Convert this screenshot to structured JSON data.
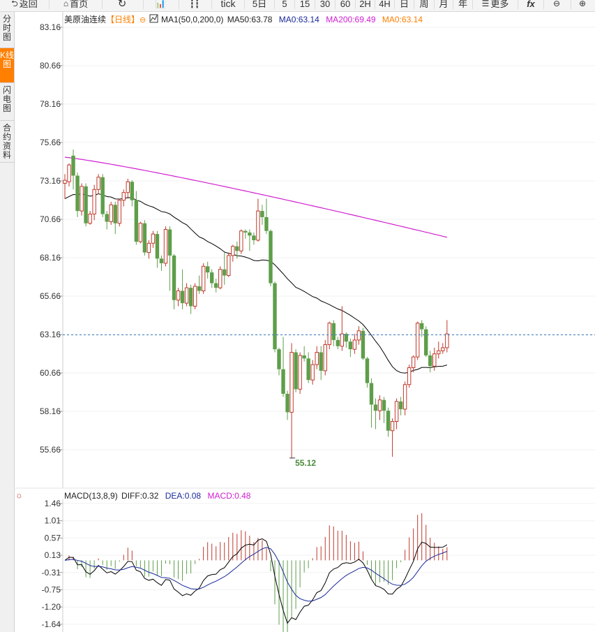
{
  "toolbar": {
    "back": "返回",
    "home": "首页",
    "tick": "tick",
    "periods": [
      "5日",
      "5",
      "15",
      "30",
      "60",
      "2H",
      "4H",
      "日",
      "周",
      "月",
      "年"
    ],
    "more": "更多",
    "fx": "fx"
  },
  "side_tabs": [
    {
      "label": "分时图",
      "active": false
    },
    {
      "label": "K线图",
      "active": true
    },
    {
      "label": "闪电图",
      "active": false
    },
    {
      "label": "合约资料",
      "active": false
    }
  ],
  "price_legend": {
    "name": "美原油连续",
    "period_tag": "【日线】",
    "ma_params": "MA1(50,0,200,0)",
    "ma50": "MA50:63.78",
    "ma0": "MA0:63.14",
    "ma200": "MA200:69.49",
    "ma0b": "MA0:63.14"
  },
  "macd_legend": {
    "name": "MACD(13,8,9)",
    "diff": "DIFF:0.32",
    "dea": "DEA:0.08",
    "macd": "MACD:0.48"
  },
  "colors": {
    "up": "#c0392b",
    "down": "#5e9e4a",
    "ma50": "#000000",
    "ma200": "#d020d0",
    "dea": "#1a2a9a",
    "last_price_line": "#3b7bbf",
    "accent": "#ff7f00"
  },
  "chart_data": [
    {
      "type": "candlestick",
      "title": "美原油连续",
      "yticks": [
        "83.16",
        "80.66",
        "78.16",
        "75.66",
        "73.16",
        "70.66",
        "68.16",
        "65.66",
        "63.16",
        "60.66",
        "58.16",
        "55.66"
      ],
      "ylim": [
        55.66,
        83.16
      ],
      "last_price": 63.14,
      "low_label": "55.12",
      "low_value": 55.12,
      "candles": [
        [
          73.0,
          73.2,
          72.0,
          73.6
        ],
        [
          73.1,
          74.2,
          72.8,
          74.3
        ],
        [
          74.8,
          73.5,
          72.6,
          75.2
        ],
        [
          73.5,
          71.2,
          70.8,
          73.7
        ],
        [
          71.2,
          72.8,
          70.9,
          73.0
        ],
        [
          72.8,
          70.4,
          70.2,
          73.0
        ],
        [
          70.4,
          71.0,
          70.3,
          71.2
        ],
        [
          71.0,
          72.6,
          70.6,
          72.9
        ],
        [
          72.6,
          73.4,
          72.3,
          73.6
        ],
        [
          73.4,
          71.0,
          70.8,
          73.6
        ],
        [
          71.0,
          70.5,
          70.0,
          71.2
        ],
        [
          70.5,
          71.6,
          70.3,
          71.8
        ],
        [
          71.6,
          70.4,
          69.7,
          71.8
        ],
        [
          70.4,
          71.9,
          70.2,
          72.0
        ],
        [
          71.9,
          72.4,
          71.5,
          72.6
        ],
        [
          72.4,
          73.1,
          72.0,
          73.3
        ],
        [
          73.1,
          71.9,
          71.5,
          73.2
        ],
        [
          71.9,
          69.2,
          69.0,
          72.5
        ],
        [
          69.2,
          70.4,
          69.1,
          70.5
        ],
        [
          70.4,
          68.5,
          68.3,
          70.6
        ],
        [
          68.5,
          69.1,
          68.1,
          69.3
        ],
        [
          69.1,
          69.7,
          68.8,
          69.9
        ],
        [
          69.7,
          68.1,
          67.5,
          69.9
        ],
        [
          68.1,
          67.8,
          67.3,
          68.3
        ],
        [
          67.8,
          70.0,
          67.6,
          70.2
        ],
        [
          70.0,
          68.3,
          66.0,
          70.2
        ],
        [
          68.3,
          65.4,
          64.8,
          68.4
        ],
        [
          65.4,
          66.0,
          65.0,
          66.2
        ],
        [
          66.0,
          65.2,
          64.8,
          67.4
        ],
        [
          65.2,
          66.2,
          65.0,
          66.5
        ],
        [
          66.2,
          65.0,
          64.5,
          66.4
        ],
        [
          65.0,
          66.3,
          64.8,
          66.5
        ],
        [
          66.3,
          66.0,
          65.8,
          67.0
        ],
        [
          66.0,
          67.6,
          65.8,
          67.8
        ],
        [
          67.6,
          67.2,
          66.8,
          67.9
        ],
        [
          67.2,
          66.5,
          66.2,
          67.4
        ],
        [
          66.5,
          66.2,
          65.9,
          66.8
        ],
        [
          66.2,
          67.4,
          66.1,
          67.6
        ],
        [
          67.4,
          67.0,
          66.4,
          68.5
        ],
        [
          67.0,
          68.3,
          66.9,
          68.5
        ],
        [
          68.3,
          68.9,
          67.9,
          69.0
        ],
        [
          68.9,
          68.6,
          68.1,
          69.2
        ],
        [
          68.6,
          69.9,
          68.4,
          70.0
        ],
        [
          69.9,
          69.8,
          69.4,
          70.0
        ],
        [
          69.8,
          69.6,
          68.6,
          70.0
        ],
        [
          69.6,
          69.3,
          69.0,
          69.8
        ],
        [
          69.3,
          71.2,
          69.2,
          72.0
        ],
        [
          71.2,
          70.8,
          70.3,
          71.6
        ],
        [
          70.8,
          69.9,
          69.7,
          72.0
        ],
        [
          69.9,
          66.5,
          66.3,
          70.0
        ],
        [
          66.5,
          62.2,
          62.0,
          66.6
        ],
        [
          62.2,
          60.9,
          60.5,
          62.3
        ],
        [
          60.9,
          59.3,
          59.1,
          63.0
        ],
        [
          59.3,
          58.1,
          57.6,
          59.5
        ],
        [
          58.1,
          62.0,
          55.12,
          62.6
        ],
        [
          62.0,
          59.6,
          59.4,
          62.2
        ],
        [
          59.6,
          61.8,
          59.3,
          62.0
        ],
        [
          61.8,
          61.6,
          61.4,
          62.4
        ],
        [
          61.6,
          60.2,
          60.0,
          62.0
        ],
        [
          60.2,
          61.2,
          59.9,
          61.5
        ],
        [
          61.2,
          62.0,
          60.9,
          62.4
        ],
        [
          62.0,
          60.8,
          60.2,
          62.4
        ],
        [
          60.8,
          62.5,
          60.5,
          62.8
        ],
        [
          62.5,
          63.9,
          62.2,
          64.0
        ],
        [
          63.9,
          62.8,
          62.4,
          64.1
        ],
        [
          62.8,
          62.4,
          62.2,
          63.0
        ],
        [
          62.4,
          63.2,
          62.1,
          65.0
        ],
        [
          63.2,
          62.7,
          62.3,
          63.3
        ],
        [
          62.7,
          62.2,
          61.7,
          62.9
        ],
        [
          62.2,
          62.8,
          61.9,
          63.2
        ],
        [
          62.8,
          63.4,
          62.5,
          63.7
        ],
        [
          63.4,
          61.6,
          61.5,
          63.6
        ],
        [
          61.6,
          60.0,
          59.7,
          61.7
        ],
        [
          60.0,
          58.6,
          57.1,
          60.3
        ],
        [
          58.6,
          58.2,
          57.0,
          59.0
        ],
        [
          58.2,
          58.9,
          57.6,
          59.2
        ],
        [
          58.9,
          58.2,
          57.4,
          59.1
        ],
        [
          58.2,
          56.9,
          56.5,
          58.4
        ],
        [
          56.9,
          57.5,
          55.2,
          57.7
        ],
        [
          57.5,
          58.8,
          57.0,
          59.0
        ],
        [
          58.8,
          58.3,
          57.9,
          59.1
        ],
        [
          58.3,
          59.9,
          57.9,
          60.1
        ],
        [
          59.9,
          61.0,
          59.7,
          61.2
        ],
        [
          61.0,
          61.7,
          60.7,
          61.8
        ],
        [
          61.7,
          63.9,
          61.5,
          64.0
        ],
        [
          63.9,
          63.5,
          63.0,
          64.1
        ],
        [
          63.5,
          61.8,
          61.7,
          63.7
        ],
        [
          61.8,
          61.1,
          60.7,
          62.1
        ],
        [
          61.1,
          61.9,
          60.8,
          62.3
        ],
        [
          61.9,
          62.1,
          61.6,
          62.7
        ],
        [
          62.1,
          62.3,
          61.9,
          62.6
        ],
        [
          62.3,
          63.2,
          62.0,
          64.1
        ]
      ]
    },
    {
      "type": "macd",
      "title": "MACD(13,8,9)",
      "yticks": [
        "1.46",
        "1.01",
        "0.57",
        "0.13",
        "-0.31",
        "-0.75",
        "-1.20",
        "-1.64"
      ],
      "ylim": [
        -1.64,
        1.46
      ]
    }
  ]
}
